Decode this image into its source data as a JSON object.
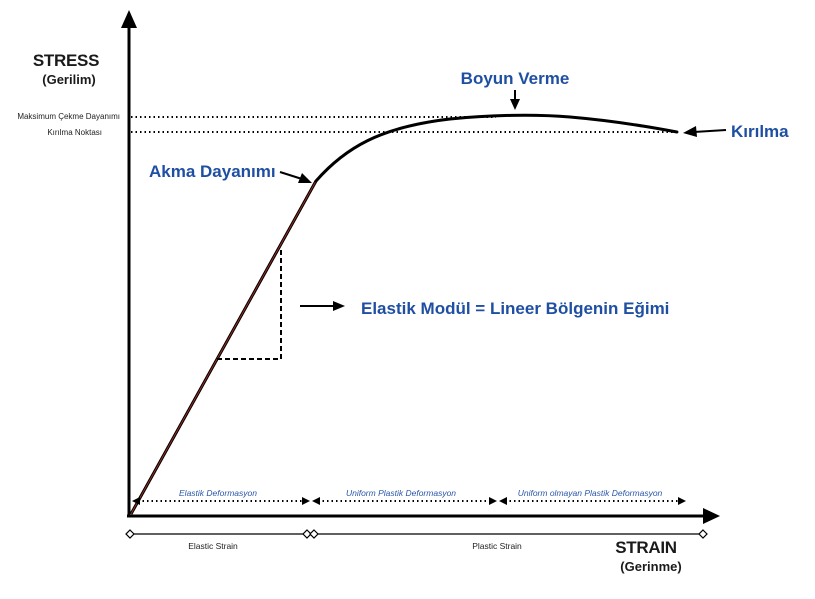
{
  "axes": {
    "y_title": "STRESS",
    "y_subtitle": "(Gerilim)",
    "x_title": "STRAIN",
    "x_subtitle": "(Gerinme)"
  },
  "y_levels": {
    "max_tensile": "Maksimum Çekme Dayanımı",
    "fracture_point": "Kırılma Noktası"
  },
  "annotations": {
    "yield_strength": "Akma Dayanımı",
    "necking": "Boyun Verme",
    "fracture": "Kırılma",
    "elastic_modulus": "Elastik Modül = Lineer Bölgenin Eğimi"
  },
  "regions": {
    "elastic_deformation": "Elastik Deformasyon",
    "uniform_plastic": "Uniform Plastik Deformasyon",
    "nonuniform_plastic": "Uniform olmayan Plastik Deformasyon"
  },
  "strain_ranges": {
    "elastic": "Elastic Strain",
    "plastic": "Plastic Strain"
  },
  "colors": {
    "annotation_blue": "#1f4fa3",
    "region_blue": "#2a56a8",
    "linear_accent": "#c0392b"
  }
}
